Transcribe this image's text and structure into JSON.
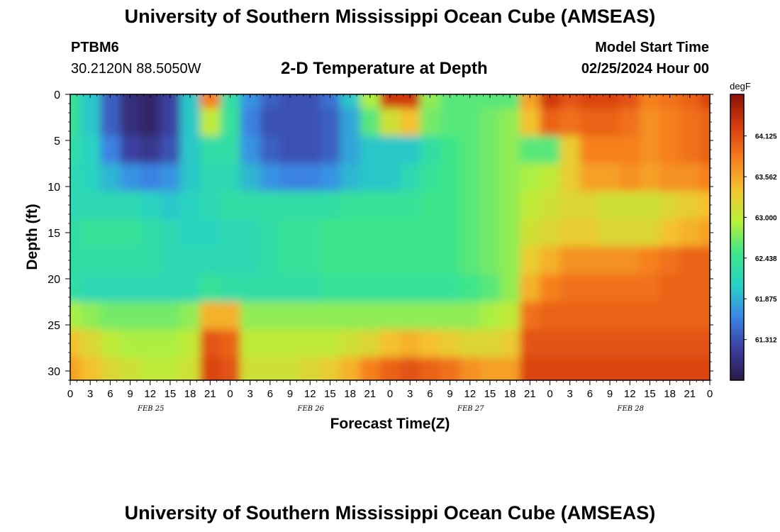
{
  "header": {
    "title": "University of Southern Mississippi Ocean Cube (AMSEAS)",
    "station": "PTBM6",
    "coords": "30.2120N  88.5050W",
    "subtitle": "2-D Temperature at Depth",
    "start_label": "Model Start Time",
    "start_value": "02/25/2024 Hour 00"
  },
  "footer": {
    "title": "University of Southern Mississippi Ocean Cube (AMSEAS)"
  },
  "chart_data": {
    "type": "heatmap",
    "title": "2-D Temperature at Depth",
    "xlabel": "Forecast Time(Z)",
    "ylabel": "Depth (ft)",
    "colorbar_unit": "degF",
    "colorbar_ticks": [
      "64.125",
      "63.562",
      "63.000",
      "62.438",
      "61.875",
      "61.312"
    ],
    "colorbar_range": [
      60.75,
      64.7
    ],
    "colors": [
      "#2a1a4a",
      "#3b3f9e",
      "#3a86e8",
      "#27d3c4",
      "#3ee58a",
      "#b8f03a",
      "#f4c430",
      "#f67c1e",
      "#d63c0e",
      "#8a1208"
    ],
    "x_hours_range": [
      0,
      96
    ],
    "x_tick_labels": [
      "0",
      "3",
      "6",
      "9",
      "12",
      "15",
      "18",
      "21",
      "0",
      "3",
      "6",
      "9",
      "12",
      "15",
      "18",
      "21",
      "0",
      "3",
      "6",
      "9",
      "12",
      "15",
      "18",
      "21",
      "0",
      "3",
      "6",
      "9",
      "12",
      "15",
      "18",
      "21",
      "0"
    ],
    "date_labels": [
      "FEB 25",
      "FEB 26",
      "FEB 27",
      "FEB 28"
    ],
    "date_label_hours": [
      12,
      36,
      60,
      84
    ],
    "y_range": [
      0,
      31
    ],
    "y_ticks": [
      0,
      5,
      10,
      15,
      20,
      25,
      30
    ],
    "x_hours": [
      0,
      3,
      6,
      9,
      12,
      15,
      18,
      21,
      24,
      27,
      30,
      33,
      36,
      39,
      42,
      45,
      48,
      51,
      54,
      57,
      60,
      63,
      66,
      69,
      72,
      75,
      78,
      81,
      84,
      87,
      90,
      93,
      96
    ],
    "depths_ft": [
      0,
      3,
      6,
      9,
      12,
      15,
      18,
      21,
      24,
      27,
      30
    ],
    "temperature_degF": [
      [
        62.4,
        62.0,
        61.4,
        61.0,
        60.9,
        61.2,
        62.0,
        63.8,
        62.3,
        61.7,
        61.4,
        61.3,
        61.3,
        61.5,
        62.0,
        62.9,
        64.3,
        64.3,
        62.8,
        62.6,
        62.6,
        62.6,
        62.6,
        63.6,
        64.3,
        64.1,
        64.2,
        64.2,
        64.1,
        63.8,
        63.9,
        64.0,
        64.2
      ],
      [
        62.4,
        62.0,
        61.4,
        61.0,
        60.9,
        61.2,
        62.0,
        63.0,
        62.4,
        61.6,
        61.3,
        61.3,
        61.3,
        61.4,
        61.8,
        62.6,
        63.1,
        63.4,
        62.7,
        62.6,
        62.6,
        62.7,
        62.8,
        63.4,
        64.0,
        63.9,
        64.0,
        64.0,
        63.9,
        63.7,
        63.8,
        63.9,
        64.0
      ],
      [
        62.3,
        62.1,
        61.6,
        61.2,
        61.1,
        61.3,
        62.0,
        62.3,
        62.3,
        61.7,
        61.4,
        61.3,
        61.3,
        61.4,
        61.8,
        62.0,
        62.0,
        62.0,
        62.3,
        62.5,
        62.6,
        62.7,
        62.8,
        62.6,
        62.6,
        63.3,
        63.8,
        63.8,
        63.8,
        63.7,
        63.8,
        63.9,
        64.0
      ],
      [
        62.2,
        62.1,
        61.9,
        61.7,
        61.6,
        61.7,
        62.0,
        62.2,
        62.2,
        61.9,
        61.7,
        61.6,
        61.6,
        61.7,
        61.9,
        62.0,
        62.0,
        62.2,
        62.4,
        62.5,
        62.6,
        62.7,
        62.8,
        62.9,
        63.0,
        63.3,
        63.6,
        63.6,
        63.7,
        63.6,
        63.7,
        63.7,
        63.8
      ],
      [
        62.2,
        62.2,
        62.2,
        62.2,
        62.1,
        62.0,
        62.1,
        62.2,
        62.3,
        62.3,
        62.3,
        62.3,
        62.3,
        62.3,
        62.4,
        62.4,
        62.4,
        62.4,
        62.5,
        62.5,
        62.6,
        62.7,
        62.8,
        63.0,
        63.1,
        63.2,
        63.2,
        63.1,
        63.1,
        63.1,
        63.2,
        63.3,
        63.4
      ],
      [
        62.3,
        62.4,
        62.4,
        62.4,
        62.3,
        62.2,
        62.1,
        62.1,
        62.2,
        62.2,
        62.3,
        62.4,
        62.4,
        62.5,
        62.5,
        62.5,
        62.5,
        62.5,
        62.5,
        62.5,
        62.6,
        62.7,
        62.8,
        63.1,
        63.2,
        63.3,
        63.3,
        63.2,
        63.2,
        63.2,
        63.4,
        63.5,
        63.6
      ],
      [
        62.3,
        62.3,
        62.3,
        62.3,
        62.3,
        62.2,
        62.2,
        62.2,
        62.2,
        62.2,
        62.3,
        62.4,
        62.4,
        62.5,
        62.5,
        62.5,
        62.5,
        62.5,
        62.5,
        62.5,
        62.6,
        62.7,
        62.8,
        63.3,
        63.5,
        63.7,
        63.7,
        63.7,
        63.7,
        63.8,
        63.9,
        64.0,
        64.0
      ],
      [
        62.3,
        62.2,
        62.2,
        62.2,
        62.2,
        62.2,
        62.2,
        62.4,
        62.3,
        62.3,
        62.3,
        62.3,
        62.3,
        62.4,
        62.4,
        62.4,
        62.4,
        62.4,
        62.4,
        62.4,
        62.5,
        62.6,
        62.8,
        63.5,
        63.8,
        63.9,
        63.9,
        63.9,
        63.9,
        63.9,
        64.0,
        64.0,
        64.0
      ],
      [
        62.9,
        62.8,
        62.7,
        62.7,
        62.7,
        62.7,
        62.8,
        63.5,
        63.5,
        62.8,
        62.8,
        62.8,
        62.8,
        62.8,
        62.8,
        62.8,
        62.8,
        62.8,
        62.8,
        62.8,
        62.8,
        62.9,
        63.0,
        63.9,
        64.0,
        64.0,
        64.0,
        64.0,
        64.0,
        64.0,
        64.0,
        64.0,
        64.0
      ],
      [
        63.4,
        63.2,
        63.0,
        62.9,
        62.9,
        62.9,
        63.0,
        64.1,
        64.0,
        63.0,
        63.0,
        63.0,
        63.0,
        63.0,
        63.1,
        63.2,
        63.4,
        63.5,
        63.4,
        63.3,
        63.2,
        63.2,
        63.3,
        64.1,
        64.1,
        64.1,
        64.1,
        64.1,
        64.1,
        64.1,
        64.1,
        64.1,
        64.1
      ],
      [
        63.6,
        63.4,
        63.2,
        63.1,
        63.0,
        63.0,
        63.1,
        64.2,
        64.1,
        63.1,
        63.1,
        63.1,
        63.2,
        63.3,
        63.5,
        63.8,
        64.0,
        64.1,
        64.0,
        63.9,
        63.7,
        63.6,
        63.6,
        64.2,
        64.2,
        64.2,
        64.2,
        64.2,
        64.2,
        64.2,
        64.2,
        64.2,
        64.2
      ]
    ]
  }
}
